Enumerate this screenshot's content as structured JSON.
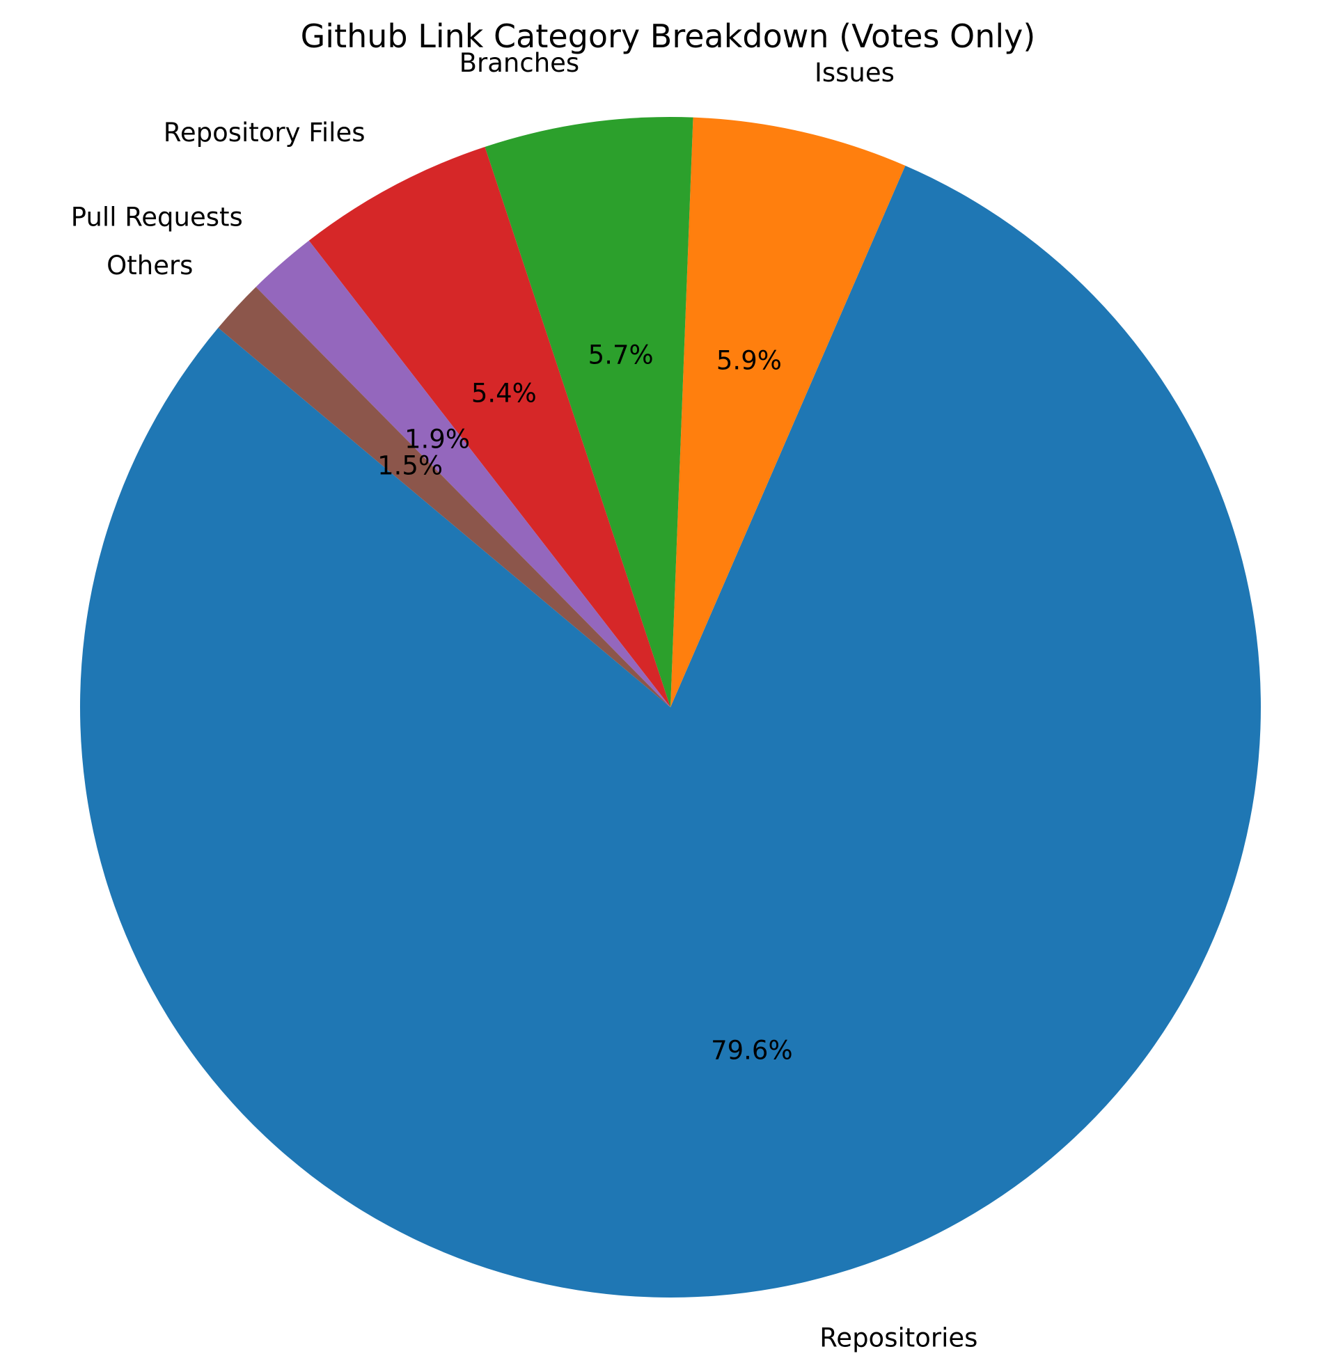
{
  "chart_data": {
    "type": "pie",
    "title": "Github Link Category Breakdown (Votes Only)",
    "start_angle_deg": 140,
    "direction": "counterclockwise",
    "autopct_format": "{:.1f}%",
    "slices": [
      {
        "label": "Repositories",
        "value": 79.6,
        "color": "#1f77b4"
      },
      {
        "label": "Issues",
        "value": 5.9,
        "color": "#ff7f0e"
      },
      {
        "label": "Branches",
        "value": 5.7,
        "color": "#2ca02c"
      },
      {
        "label": "Repository Files",
        "value": 5.4,
        "color": "#d62728"
      },
      {
        "label": "Pull Requests",
        "value": 1.9,
        "color": "#9467bd"
      },
      {
        "label": "Others",
        "value": 1.5,
        "color": "#8c564b"
      }
    ]
  }
}
